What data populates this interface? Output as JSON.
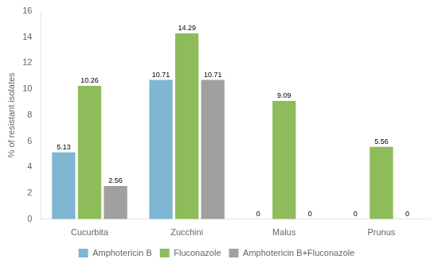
{
  "chart_data": {
    "type": "bar",
    "categories": [
      "Cucurbita",
      "Zucchini",
      "Malus",
      "Prunus"
    ],
    "series": [
      {
        "name": "Amphotericin B",
        "color": "#7eb6d4",
        "values": [
          5.13,
          10.71,
          0,
          0
        ]
      },
      {
        "name": "Fluconazole",
        "color": "#8fbc5a",
        "values": [
          10.26,
          14.29,
          9.09,
          5.56
        ]
      },
      {
        "name": "Amphotericin B+Fluconazole",
        "color": "#a0a0a0",
        "values": [
          2.56,
          10.71,
          0,
          0
        ]
      }
    ],
    "ylabel": "% of resistant isolates",
    "ylim": [
      0,
      16
    ],
    "yticks": [
      0,
      2,
      4,
      6,
      8,
      10,
      12,
      14,
      16
    ],
    "data_labels": true,
    "grid": false,
    "legend": "bottom"
  }
}
